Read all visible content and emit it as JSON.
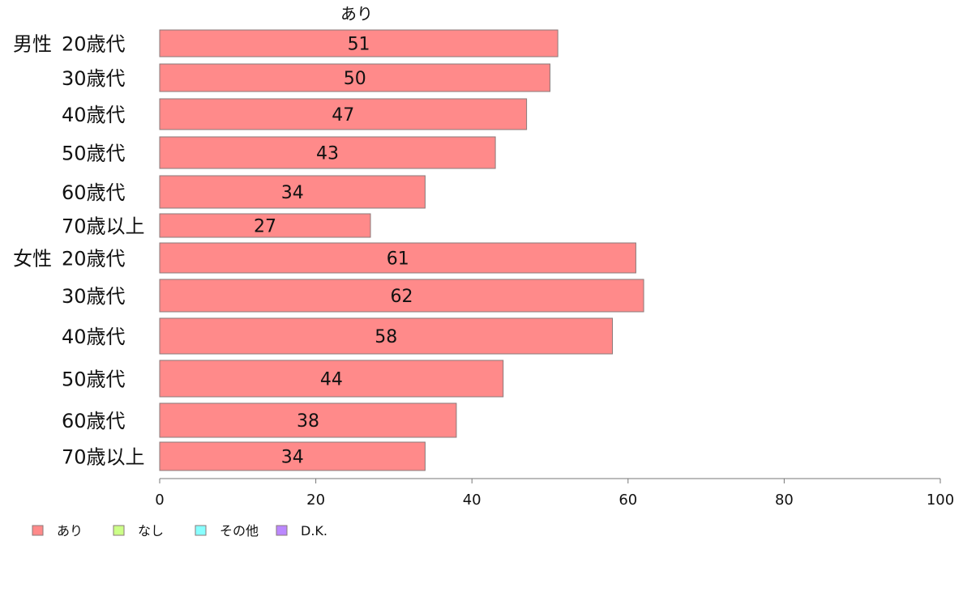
{
  "chart_data": {
    "type": "bar",
    "orientation": "horizontal",
    "title": "",
    "series_title": "あり",
    "xlim": [
      0,
      100
    ],
    "x_ticks": [
      0,
      20,
      40,
      60,
      80,
      100
    ],
    "grid": false,
    "bar_color": "#ff8a8a",
    "bar_border": "#8a7a7a",
    "groups": [
      {
        "label": "男性",
        "rows": [
          {
            "label": "20歳代",
            "value": 51
          },
          {
            "label": "30歳代",
            "value": 50
          },
          {
            "label": "40歳代",
            "value": 47
          },
          {
            "label": "50歳代",
            "value": 43
          },
          {
            "label": "60歳代",
            "value": 34
          },
          {
            "label": "70歳以上",
            "value": 27
          }
        ]
      },
      {
        "label": "女性",
        "rows": [
          {
            "label": "20歳代",
            "value": 61
          },
          {
            "label": "30歳代",
            "value": 62
          },
          {
            "label": "40歳代",
            "value": 58
          },
          {
            "label": "50歳代",
            "value": 44
          },
          {
            "label": "60歳代",
            "value": 38
          },
          {
            "label": "70歳以上",
            "value": 34
          }
        ]
      }
    ],
    "legend_position": "bottom-left",
    "legend": [
      {
        "label": "あり",
        "color": "#ff8a8a"
      },
      {
        "label": "なし",
        "color": "#ccff88"
      },
      {
        "label": "その他",
        "color": "#88ffff"
      },
      {
        "label": "D.K.",
        "color": "#bb88ff"
      }
    ]
  }
}
